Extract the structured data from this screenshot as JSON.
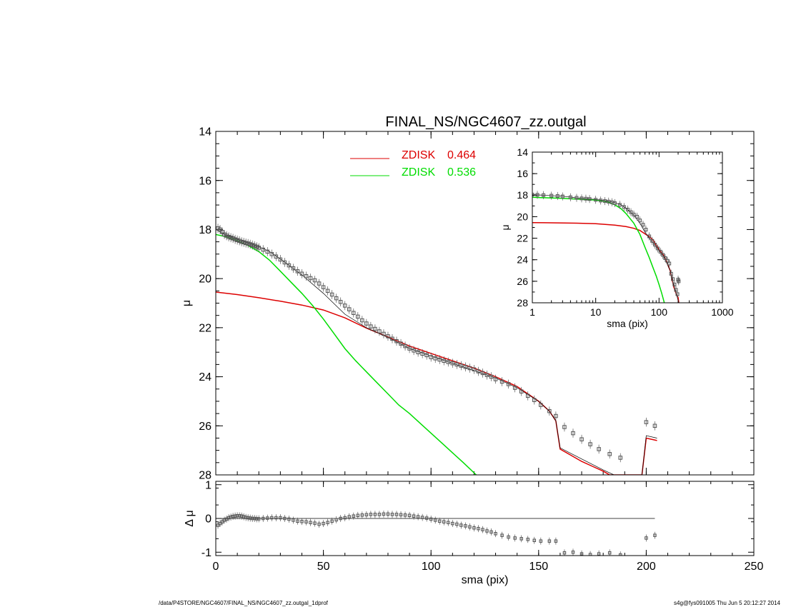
{
  "title": "FINAL_NS/NGC4607_zz.outgal",
  "footer": {
    "left": "/data/P4STORE/NGC4607/FINAL_NS/NGC4607_zz.outgal_1dprof",
    "right": "s4g@fys091005  Thu Jun  5 20:12:27 2014"
  },
  "colors": {
    "disk1": "#dd0000",
    "disk2": "#00dd00",
    "total": "#000000",
    "data": "#555555"
  },
  "chart_data": [
    {
      "id": "main",
      "type": "line",
      "xlabel": "",
      "ylabel": "μ",
      "xlim": [
        0,
        250
      ],
      "ylim": [
        28,
        14
      ],
      "yticks": [
        14,
        16,
        18,
        20,
        22,
        24,
        26,
        28
      ],
      "legend": [
        {
          "label": "ZDISK",
          "value": "0.464",
          "color": "#dd0000"
        },
        {
          "label": "ZDISK",
          "value": "0.536",
          "color": "#00dd00"
        }
      ],
      "series": [
        {
          "name": "ZDISK 0.464",
          "color": "#dd0000",
          "x": [
            0,
            10,
            20,
            30,
            40,
            50,
            60,
            70,
            80,
            90,
            100,
            110,
            120,
            130,
            140,
            150,
            155,
            158,
            160,
            165,
            170,
            175,
            180,
            183,
            198,
            200,
            205
          ],
          "y": [
            20.55,
            20.65,
            20.78,
            20.92,
            21.08,
            21.28,
            21.6,
            22.02,
            22.38,
            22.75,
            23.05,
            23.35,
            23.65,
            24,
            24.4,
            25,
            25.4,
            25.8,
            26.95,
            27.2,
            27.45,
            27.65,
            27.85,
            28.0,
            28.0,
            26.5,
            26.6
          ]
        },
        {
          "name": "ZDISK 0.536",
          "color": "#00dd00",
          "x": [
            0,
            5,
            10,
            15,
            20,
            25,
            30,
            35,
            40,
            45,
            50,
            55,
            60,
            65,
            70,
            75,
            80,
            85,
            90,
            95,
            100,
            105,
            110,
            115,
            121
          ],
          "y": [
            18.2,
            18.3,
            18.45,
            18.65,
            18.9,
            19.25,
            19.7,
            20.15,
            20.6,
            21.1,
            21.65,
            22.25,
            22.85,
            23.35,
            23.8,
            24.25,
            24.7,
            25.15,
            25.5,
            25.9,
            26.3,
            26.7,
            27.1,
            27.5,
            28.0
          ]
        },
        {
          "name": "total",
          "color": "#000000",
          "x": [
            0,
            5,
            10,
            15,
            20,
            25,
            30,
            40,
            50,
            60,
            70,
            80,
            90,
            100,
            110,
            120,
            130,
            140,
            150,
            155,
            158,
            160,
            170,
            180,
            185,
            198,
            200,
            205
          ],
          "y": [
            18.0,
            18.25,
            18.4,
            18.55,
            18.7,
            18.9,
            19.2,
            19.85,
            20.6,
            21.45,
            22.0,
            22.4,
            22.85,
            23.15,
            23.45,
            23.75,
            24.05,
            24.45,
            25.0,
            25.4,
            25.8,
            26.9,
            27.35,
            27.8,
            28.0,
            28.0,
            26.4,
            26.5
          ]
        }
      ],
      "points": {
        "x": [
          1,
          2,
          3,
          4,
          5,
          6,
          7,
          8,
          9,
          10,
          11,
          12,
          13,
          14,
          15,
          16,
          17,
          18,
          19,
          20,
          22,
          24,
          26,
          28,
          30,
          32,
          34,
          36,
          38,
          40,
          42,
          44,
          46,
          48,
          50,
          52,
          54,
          56,
          58,
          60,
          62,
          64,
          66,
          68,
          70,
          72,
          74,
          76,
          78,
          80,
          82,
          84,
          86,
          88,
          90,
          92,
          94,
          96,
          98,
          100,
          102,
          104,
          106,
          108,
          110,
          112,
          114,
          116,
          118,
          120,
          122,
          124,
          126,
          128,
          130,
          133,
          136,
          139,
          142,
          145,
          148,
          151,
          155,
          158,
          162,
          166,
          170,
          174,
          178,
          183,
          188,
          200,
          204
        ],
        "y": [
          17.95,
          18.0,
          18.1,
          18.2,
          18.25,
          18.3,
          18.33,
          18.36,
          18.4,
          18.43,
          18.46,
          18.5,
          18.52,
          18.55,
          18.57,
          18.6,
          18.63,
          18.66,
          18.7,
          18.74,
          18.82,
          18.9,
          19.0,
          19.1,
          19.22,
          19.34,
          19.46,
          19.58,
          19.7,
          19.8,
          19.9,
          19.98,
          20.07,
          20.2,
          20.35,
          20.5,
          20.65,
          20.8,
          20.95,
          21.1,
          21.25,
          21.4,
          21.55,
          21.7,
          21.83,
          21.95,
          22.05,
          22.15,
          22.25,
          22.35,
          22.45,
          22.55,
          22.65,
          22.75,
          22.85,
          22.93,
          23.0,
          23.06,
          23.12,
          23.2,
          23.25,
          23.3,
          23.35,
          23.4,
          23.45,
          23.5,
          23.55,
          23.6,
          23.65,
          23.7,
          23.78,
          23.85,
          23.93,
          24.0,
          24.1,
          24.2,
          24.3,
          24.45,
          24.6,
          24.78,
          24.95,
          25.15,
          25.4,
          25.6,
          26.05,
          26.3,
          26.55,
          26.75,
          26.95,
          27.15,
          27.3,
          25.85,
          26.0
        ]
      }
    },
    {
      "id": "residual",
      "type": "scatter",
      "xlabel": "sma (pix)",
      "ylabel": "Δ μ",
      "xlim": [
        0,
        250
      ],
      "ylim": [
        -1.1,
        1.1
      ],
      "xticks": [
        0,
        50,
        100,
        150,
        200,
        250
      ],
      "yticks": [
        -1,
        0,
        1
      ],
      "zero_line_to": 204,
      "points": {
        "x": [
          1,
          2,
          3,
          4,
          5,
          6,
          7,
          8,
          9,
          10,
          11,
          12,
          13,
          14,
          15,
          16,
          17,
          18,
          19,
          20,
          22,
          24,
          26,
          28,
          30,
          32,
          34,
          36,
          38,
          40,
          42,
          44,
          46,
          48,
          50,
          52,
          54,
          56,
          58,
          60,
          62,
          64,
          66,
          68,
          70,
          72,
          74,
          76,
          78,
          80,
          82,
          84,
          86,
          88,
          90,
          92,
          94,
          96,
          98,
          100,
          102,
          104,
          106,
          108,
          110,
          112,
          114,
          116,
          118,
          120,
          122,
          124,
          126,
          128,
          130,
          133,
          136,
          139,
          142,
          145,
          148,
          151,
          155,
          158,
          162,
          166,
          170,
          174,
          178,
          183,
          188,
          200,
          204
        ],
        "y": [
          -0.2,
          -0.15,
          -0.1,
          -0.05,
          -0.02,
          0.02,
          0.04,
          0.06,
          0.07,
          0.08,
          0.08,
          0.07,
          0.05,
          0.03,
          0.02,
          0.01,
          0.0,
          0.0,
          -0.01,
          -0.01,
          0.0,
          0.01,
          0.02,
          0.02,
          0.02,
          0.0,
          -0.02,
          -0.05,
          -0.08,
          -0.09,
          -0.1,
          -0.12,
          -0.14,
          -0.17,
          -0.15,
          -0.12,
          -0.08,
          -0.04,
          0.0,
          0.02,
          0.05,
          0.07,
          0.09,
          0.1,
          0.11,
          0.12,
          0.12,
          0.12,
          0.13,
          0.13,
          0.12,
          0.12,
          0.11,
          0.1,
          0.09,
          0.07,
          0.05,
          0.03,
          0.01,
          -0.02,
          -0.05,
          -0.08,
          -0.1,
          -0.12,
          -0.15,
          -0.17,
          -0.2,
          -0.22,
          -0.25,
          -0.28,
          -0.3,
          -0.33,
          -0.37,
          -0.4,
          -0.45,
          -0.5,
          -0.55,
          -0.58,
          -0.6,
          -0.62,
          -0.65,
          -0.67,
          -0.67,
          -0.67,
          -1.02,
          -1.0,
          -1.05,
          -1.07,
          -1.05,
          -1.02,
          -1.08,
          -0.58,
          -0.5
        ]
      }
    },
    {
      "id": "inset",
      "type": "line",
      "xlabel": "sma (pix)",
      "ylabel": "μ",
      "xscale": "log",
      "xlim": [
        1,
        1000
      ],
      "ylim": [
        28,
        14
      ],
      "xticks": [
        1,
        10,
        100,
        1000
      ],
      "yticks": [
        14,
        16,
        18,
        20,
        22,
        24,
        26,
        28
      ],
      "series": [
        {
          "name": "ZDISK 0.464",
          "color": "#dd0000",
          "x": [
            1,
            5,
            10,
            20,
            30,
            40,
            50,
            60,
            70,
            80,
            100,
            120,
            150,
            170,
            190,
            200,
            205
          ],
          "y": [
            20.55,
            20.6,
            20.65,
            20.78,
            20.92,
            21.08,
            21.28,
            21.6,
            21.85,
            22.15,
            23.05,
            23.65,
            25.0,
            26.5,
            27.3,
            27.5,
            28.0
          ]
        },
        {
          "name": "ZDISK 0.536",
          "color": "#00dd00",
          "x": [
            1,
            3,
            6,
            10,
            15,
            20,
            25,
            30,
            40,
            50,
            60,
            70,
            80,
            90,
            100,
            110,
            121
          ],
          "y": [
            18.2,
            18.3,
            18.4,
            18.45,
            18.6,
            18.9,
            19.25,
            19.7,
            20.6,
            21.65,
            22.85,
            23.8,
            24.7,
            25.5,
            26.3,
            27.1,
            28.0
          ]
        },
        {
          "name": "total",
          "color": "#000000",
          "x": [
            1,
            3,
            5,
            10,
            15,
            20,
            25,
            30,
            40,
            50,
            60,
            70,
            80,
            100,
            120,
            150,
            170,
            190,
            205
          ],
          "y": [
            17.95,
            18.1,
            18.25,
            18.4,
            18.55,
            18.7,
            18.9,
            19.2,
            19.85,
            20.6,
            21.45,
            22.0,
            22.4,
            23.15,
            23.75,
            25.0,
            26.3,
            27.3,
            28.0
          ]
        }
      ],
      "points": {
        "x": [
          1,
          1.2,
          1.5,
          2,
          2.5,
          3,
          4,
          5,
          6,
          7,
          8,
          10,
          12,
          14,
          16,
          18,
          20,
          24,
          28,
          32,
          36,
          40,
          45,
          50,
          56,
          62,
          70,
          78,
          86,
          95,
          105,
          115,
          125,
          135,
          145,
          155,
          165,
          175,
          185,
          195,
          200,
          204
        ],
        "y": [
          17.95,
          17.97,
          18.0,
          18.05,
          18.08,
          18.12,
          18.2,
          18.25,
          18.3,
          18.33,
          18.36,
          18.43,
          18.5,
          18.55,
          18.6,
          18.66,
          18.74,
          18.9,
          19.1,
          19.34,
          19.58,
          19.8,
          20.0,
          20.35,
          20.75,
          21.2,
          21.83,
          22.25,
          22.6,
          22.95,
          23.25,
          23.55,
          23.85,
          24.1,
          24.35,
          25.3,
          25.8,
          26.3,
          26.8,
          27.2,
          25.85,
          26.0
        ]
      }
    }
  ]
}
